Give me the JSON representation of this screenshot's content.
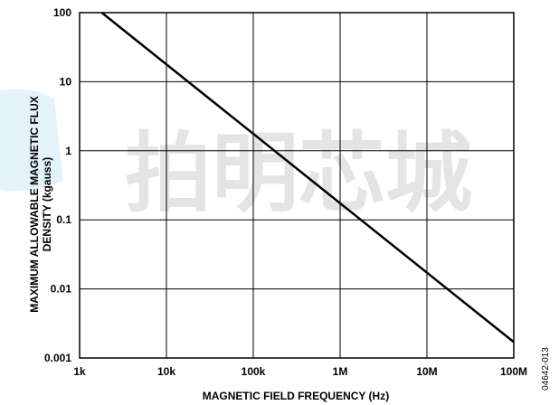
{
  "chart_data": {
    "type": "line",
    "x_scale": "log",
    "y_scale": "log",
    "xlabel": "MAGNETIC FIELD FREQUENCY (Hz)",
    "ylabel_line1": "MAXIMUM ALLOWABLE MAGNETIC FLUX",
    "ylabel_line2": "DENSITY (kgauss)",
    "xlim": [
      1000,
      100000000
    ],
    "ylim": [
      0.001,
      100
    ],
    "x_ticks": [
      {
        "value": 1000,
        "label": "1k"
      },
      {
        "value": 10000,
        "label": "10k"
      },
      {
        "value": 100000,
        "label": "100k"
      },
      {
        "value": 1000000,
        "label": "1M"
      },
      {
        "value": 10000000,
        "label": "10M"
      },
      {
        "value": 100000000,
        "label": "100M"
      }
    ],
    "y_ticks": [
      {
        "value": 0.001,
        "label": "0.001"
      },
      {
        "value": 0.01,
        "label": "0.01"
      },
      {
        "value": 0.1,
        "label": "0.1"
      },
      {
        "value": 1,
        "label": "1"
      },
      {
        "value": 10,
        "label": "10"
      },
      {
        "value": 100,
        "label": "100"
      }
    ],
    "grid": true,
    "series": [
      {
        "x": [
          1800,
          100000000
        ],
        "y": [
          100,
          0.0017
        ]
      }
    ],
    "line_color": "#000000"
  },
  "watermark_text": "拍明芯城",
  "figure_id": "04642-013"
}
